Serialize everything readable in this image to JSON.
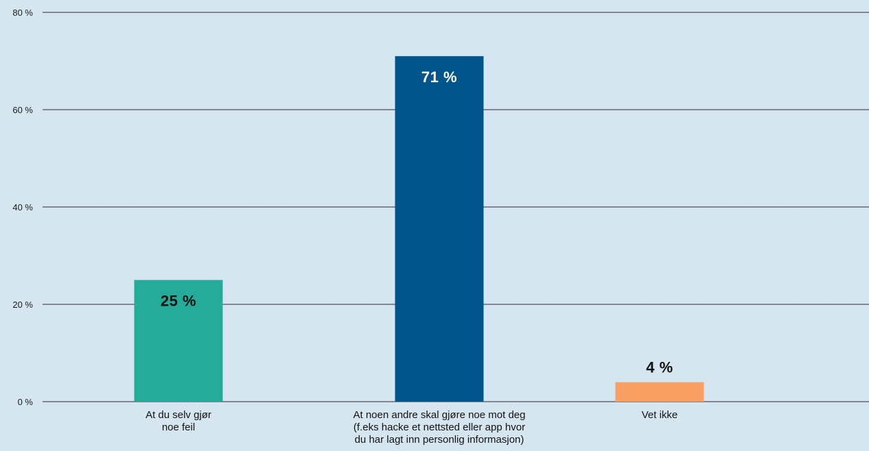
{
  "chart_data": {
    "type": "bar",
    "title": "",
    "xlabel": "",
    "ylabel": "",
    "ylim": [
      0,
      80
    ],
    "yticks": [
      {
        "value": 0,
        "label": "0 %"
      },
      {
        "value": 20,
        "label": "20 %"
      },
      {
        "value": 40,
        "label": "40 %"
      },
      {
        "value": 60,
        "label": "60 %"
      },
      {
        "value": 80,
        "label": "80 %"
      }
    ],
    "grid": true,
    "categories": [
      {
        "lines": [
          "At du selv gjør",
          "noe feil"
        ]
      },
      {
        "lines": [
          "At noen andre skal gjøre noe mot deg",
          "(f.eks hacke et nettsted eller app hvor",
          "du har lagt inn personlig informasjon)"
        ]
      },
      {
        "lines": [
          "Vet ikke"
        ]
      }
    ],
    "values": [
      25,
      71,
      4
    ],
    "data_labels": [
      "25 %",
      "71 %",
      "4 %"
    ],
    "colors": [
      "#26ab9b",
      "#00558b",
      "#f8a062"
    ],
    "label_colors": [
      "#111111",
      "#ffffff",
      "#111111"
    ]
  }
}
